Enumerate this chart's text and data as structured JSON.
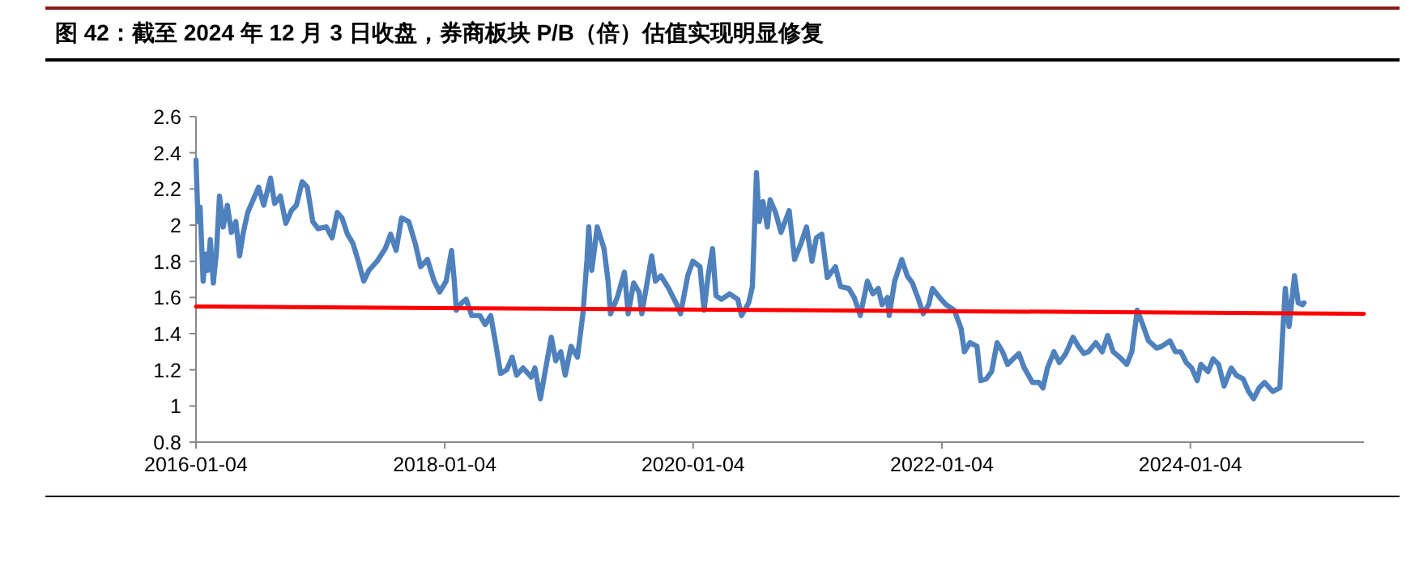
{
  "chart_data": {
    "type": "line",
    "title": "图 42：截至 2024 年 12 月 3 日收盘，券商板块 P/B（倍）估值实现明显修复",
    "xlim": [
      "2016-01-04",
      "2025-05-28"
    ],
    "xticks": [
      "2016-01-04",
      "2018-01-04",
      "2020-01-04",
      "2022-01-04",
      "2024-01-04"
    ],
    "ylim": [
      0.8,
      2.6
    ],
    "yticks": [
      0.8,
      1,
      1.2,
      1.4,
      1.6,
      1.8,
      2,
      2.2,
      2.4,
      2.6
    ],
    "grid": false,
    "marker": "none",
    "line_style": "solid",
    "series": [
      {
        "color": "#4f81bd",
        "x": [
          "2016-01-04",
          "2016-01-10",
          "2016-01-16",
          "2016-01-25",
          "2016-02-01",
          "2016-02-08",
          "2016-02-15",
          "2016-02-24",
          "2016-03-04",
          "2016-03-13",
          "2016-03-24",
          "2016-04-05",
          "2016-04-17",
          "2016-04-30",
          "2016-05-11",
          "2016-05-22",
          "2016-06-04",
          "2016-06-20",
          "2016-07-06",
          "2016-07-21",
          "2016-08-10",
          "2016-08-22",
          "2016-09-08",
          "2016-09-24",
          "2016-10-10",
          "2016-10-25",
          "2016-11-11",
          "2016-11-26",
          "2016-12-12",
          "2016-12-28",
          "2017-01-21",
          "2017-02-07",
          "2017-02-22",
          "2017-03-08",
          "2017-03-24",
          "2017-04-09",
          "2017-04-25",
          "2017-05-11",
          "2017-05-26",
          "2017-06-19",
          "2017-07-13",
          "2017-07-29",
          "2017-08-14",
          "2017-08-30",
          "2017-09-20",
          "2017-10-09",
          "2017-10-25",
          "2017-11-14",
          "2017-12-04",
          "2017-12-20",
          "2018-01-08",
          "2018-01-24",
          "2018-02-01",
          "2018-02-07",
          "2018-02-23",
          "2018-03-08",
          "2018-03-24",
          "2018-04-17",
          "2018-05-03",
          "2018-05-19",
          "2018-06-04",
          "2018-06-17",
          "2018-07-05",
          "2018-07-21",
          "2018-08-03",
          "2018-08-22",
          "2018-09-15",
          "2018-09-26",
          "2018-10-12",
          "2018-10-25",
          "2018-11-13",
          "2018-11-26",
          "2018-12-11",
          "2018-12-24",
          "2019-01-10",
          "2019-01-29",
          "2019-02-14",
          "2019-02-26",
          "2019-03-03",
          "2019-03-12",
          "2019-03-28",
          "2019-04-17",
          "2019-04-29",
          "2019-05-06",
          "2019-05-26",
          "2019-06-16",
          "2019-06-27",
          "2019-07-13",
          "2019-07-29",
          "2019-08-06",
          "2019-09-04",
          "2019-09-15",
          "2019-10-01",
          "2019-10-24",
          "2019-11-17",
          "2019-11-28",
          "2019-12-19",
          "2020-01-03",
          "2020-01-24",
          "2020-02-05",
          "2020-02-17",
          "2020-03-01",
          "2020-03-11",
          "2020-03-27",
          "2020-04-20",
          "2020-05-14",
          "2020-05-25",
          "2020-06-15",
          "2020-06-26",
          "2020-07-08",
          "2020-07-16",
          "2020-07-27",
          "2020-08-09",
          "2020-08-17",
          "2020-09-02",
          "2020-09-18",
          "2020-10-12",
          "2020-10-28",
          "2020-11-16",
          "2020-12-02",
          "2020-12-18",
          "2020-12-31",
          "2021-01-16",
          "2021-02-01",
          "2021-02-25",
          "2021-03-12",
          "2021-04-05",
          "2021-04-21",
          "2021-05-09",
          "2021-05-30",
          "2021-06-15",
          "2021-07-01",
          "2021-07-12",
          "2021-07-28",
          "2021-08-02",
          "2021-08-18",
          "2021-09-08",
          "2021-09-24",
          "2021-10-09",
          "2021-10-25",
          "2021-11-10",
          "2021-11-26",
          "2021-12-07",
          "2021-12-28",
          "2022-01-16",
          "2022-02-09",
          "2022-03-01",
          "2022-03-11",
          "2022-03-27",
          "2022-04-17",
          "2022-04-28",
          "2022-05-14",
          "2022-05-30",
          "2022-06-15",
          "2022-07-01",
          "2022-07-16",
          "2022-08-01",
          "2022-08-18",
          "2022-09-03",
          "2022-09-27",
          "2022-10-16",
          "2022-10-28",
          "2022-11-10",
          "2022-11-29",
          "2022-12-15",
          "2023-01-03",
          "2023-01-24",
          "2023-02-09",
          "2023-02-25",
          "2023-03-11",
          "2023-04-01",
          "2023-04-20",
          "2023-05-06",
          "2023-05-22",
          "2023-06-10",
          "2023-07-01",
          "2023-07-16",
          "2023-08-01",
          "2023-08-17",
          "2023-09-03",
          "2023-09-27",
          "2023-10-12",
          "2023-11-05",
          "2023-11-21",
          "2023-12-07",
          "2023-12-23",
          "2024-01-08",
          "2024-01-24",
          "2024-02-04",
          "2024-02-25",
          "2024-03-11",
          "2024-03-27",
          "2024-04-12",
          "2024-05-03",
          "2024-05-18",
          "2024-06-07",
          "2024-06-23",
          "2024-07-08",
          "2024-07-24",
          "2024-08-09",
          "2024-09-02",
          "2024-09-23",
          "2024-09-30",
          "2024-10-09",
          "2024-10-20",
          "2024-11-05",
          "2024-11-16",
          "2024-11-29",
          "2024-12-03"
        ],
        "values": [
          2.36,
          2.02,
          2.1,
          1.69,
          1.84,
          1.75,
          1.92,
          1.68,
          1.85,
          2.16,
          1.99,
          2.11,
          1.96,
          2.02,
          1.83,
          1.96,
          2.07,
          2.14,
          2.21,
          2.11,
          2.26,
          2.12,
          2.16,
          2.01,
          2.08,
          2.11,
          2.24,
          2.21,
          2.02,
          1.98,
          1.99,
          1.93,
          2.07,
          2.04,
          1.95,
          1.9,
          1.8,
          1.69,
          1.75,
          1.8,
          1.87,
          1.95,
          1.86,
          2.04,
          2.02,
          1.9,
          1.77,
          1.81,
          1.69,
          1.63,
          1.69,
          1.86,
          1.69,
          1.53,
          1.57,
          1.59,
          1.5,
          1.5,
          1.45,
          1.5,
          1.33,
          1.18,
          1.2,
          1.27,
          1.17,
          1.21,
          1.16,
          1.21,
          1.04,
          1.18,
          1.38,
          1.25,
          1.3,
          1.17,
          1.33,
          1.27,
          1.51,
          1.81,
          1.99,
          1.75,
          1.99,
          1.87,
          1.69,
          1.51,
          1.6,
          1.74,
          1.51,
          1.68,
          1.63,
          1.51,
          1.83,
          1.69,
          1.72,
          1.65,
          1.56,
          1.51,
          1.72,
          1.8,
          1.77,
          1.53,
          1.72,
          1.87,
          1.61,
          1.59,
          1.62,
          1.59,
          1.5,
          1.57,
          1.66,
          2.29,
          2.02,
          2.13,
          1.99,
          2.14,
          2.07,
          1.96,
          2.08,
          1.81,
          1.9,
          1.99,
          1.8,
          1.93,
          1.95,
          1.71,
          1.77,
          1.66,
          1.65,
          1.6,
          1.5,
          1.69,
          1.62,
          1.65,
          1.56,
          1.6,
          1.5,
          1.69,
          1.81,
          1.72,
          1.68,
          1.6,
          1.51,
          1.56,
          1.65,
          1.6,
          1.56,
          1.53,
          1.43,
          1.3,
          1.35,
          1.33,
          1.14,
          1.15,
          1.19,
          1.35,
          1.3,
          1.23,
          1.26,
          1.29,
          1.21,
          1.13,
          1.13,
          1.1,
          1.21,
          1.3,
          1.24,
          1.29,
          1.38,
          1.33,
          1.29,
          1.3,
          1.35,
          1.3,
          1.39,
          1.3,
          1.27,
          1.23,
          1.3,
          1.53,
          1.45,
          1.36,
          1.32,
          1.33,
          1.36,
          1.3,
          1.3,
          1.24,
          1.21,
          1.14,
          1.23,
          1.19,
          1.26,
          1.23,
          1.11,
          1.21,
          1.17,
          1.15,
          1.08,
          1.04,
          1.1,
          1.13,
          1.08,
          1.1,
          1.36,
          1.65,
          1.44,
          1.72,
          1.57,
          1.56,
          1.57
        ]
      },
      {
        "color": "#ff0000",
        "x": [
          "2016-01-04",
          "2025-05-28"
        ],
        "values": [
          1.55,
          1.51
        ]
      }
    ]
  }
}
